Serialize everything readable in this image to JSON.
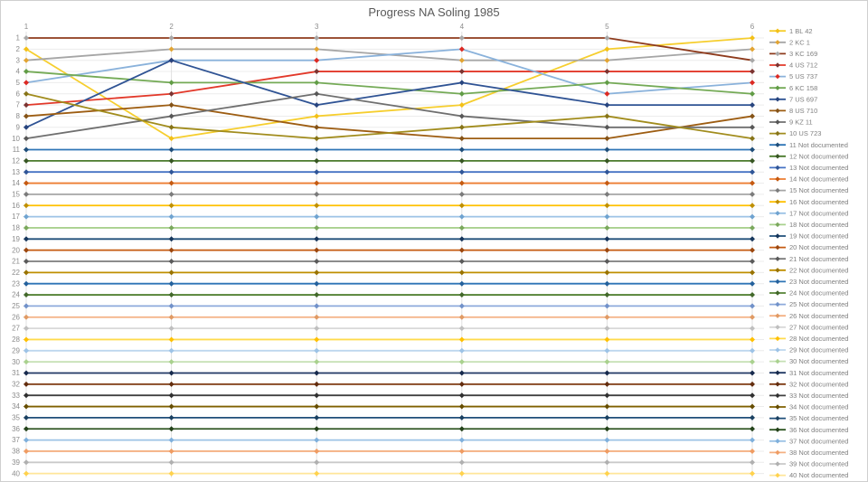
{
  "chart_data": {
    "type": "line",
    "title": "Progress NA Soling 1985",
    "x_labels": [
      "1",
      "2",
      "3",
      "4",
      "5",
      "6"
    ],
    "xlabel": "",
    "ylabel": "",
    "y_axis": {
      "min": 1,
      "max": 40,
      "step": 1,
      "inverted": true
    },
    "grid": "on",
    "legend_position": "right",
    "series": [
      {
        "name": "1 BL 42",
        "line": "#f6ce2e",
        "marker": "#f3c018",
        "values": [
          2,
          10,
          8,
          7,
          2,
          1
        ]
      },
      {
        "name": "2 KC 1",
        "line": "#a6a6a6",
        "marker": "#e2a432",
        "values": [
          3,
          2,
          2,
          3,
          3,
          2
        ]
      },
      {
        "name": "3 KC 169",
        "line": "#8e3b1d",
        "marker": "#a8a8a8",
        "values": [
          1,
          1,
          1,
          1,
          1,
          3
        ]
      },
      {
        "name": "4 US 712",
        "line": "#e2392a",
        "marker": "#7c3431",
        "values": [
          7,
          6,
          4,
          4,
          4,
          4
        ]
      },
      {
        "name": "5 US 737",
        "line": "#8ab2db",
        "marker": "#dc2a23",
        "values": [
          5,
          3,
          3,
          2,
          6,
          5
        ]
      },
      {
        "name": "6 KC 158",
        "line": "#74aa56",
        "marker": "#619c46",
        "values": [
          4,
          5,
          5,
          6,
          5,
          6
        ]
      },
      {
        "name": "7 US 697",
        "line": "#2f5394",
        "marker": "#27447e",
        "values": [
          9,
          3,
          7,
          5,
          7,
          7
        ]
      },
      {
        "name": "8 US 710",
        "line": "#9d5d12",
        "marker": "#855317",
        "values": [
          8,
          7,
          9,
          10,
          10,
          8
        ]
      },
      {
        "name": "9 KZ 11",
        "line": "#6f6f6f",
        "marker": "#575757",
        "values": [
          10,
          8,
          6,
          8,
          9,
          9
        ]
      },
      {
        "name": "10 US 723",
        "line": "#a18c1d",
        "marker": "#877418",
        "values": [
          6,
          9,
          10,
          9,
          8,
          10
        ]
      },
      {
        "name": "11 Not documented",
        "line": "#2e75b6",
        "marker": "#1f4e79",
        "values": [
          11,
          11,
          11,
          11,
          11,
          11
        ]
      },
      {
        "name": "12 Not documented",
        "line": "#4a7a2c",
        "marker": "#375623",
        "values": [
          12,
          12,
          12,
          12,
          12,
          12
        ]
      },
      {
        "name": "13 Not documented",
        "line": "#4472c4",
        "marker": "#2f5597",
        "values": [
          13,
          13,
          13,
          13,
          13,
          13
        ]
      },
      {
        "name": "14 Not documented",
        "line": "#ed7d31",
        "marker": "#c55a11",
        "values": [
          14,
          14,
          14,
          14,
          14,
          14
        ]
      },
      {
        "name": "15 Not documented",
        "line": "#a5a5a5",
        "marker": "#7b7b7b",
        "values": [
          15,
          15,
          15,
          15,
          15,
          15
        ]
      },
      {
        "name": "16 Not documented",
        "line": "#ffc000",
        "marker": "#bf8f00",
        "values": [
          16,
          16,
          16,
          16,
          16,
          16
        ]
      },
      {
        "name": "17 Not documented",
        "line": "#9dc3e6",
        "marker": "#6fa3d0",
        "values": [
          17,
          17,
          17,
          17,
          17,
          17
        ]
      },
      {
        "name": "18 Not documented",
        "line": "#a9d18e",
        "marker": "#7aa85c",
        "values": [
          18,
          18,
          18,
          18,
          18,
          18
        ]
      },
      {
        "name": "19 Not documented",
        "line": "#1f4e79",
        "marker": "#16365c",
        "values": [
          19,
          19,
          19,
          19,
          19,
          19
        ]
      },
      {
        "name": "20 Not documented",
        "line": "#c55a11",
        "marker": "#9c470e",
        "values": [
          20,
          20,
          20,
          20,
          20,
          20
        ]
      },
      {
        "name": "21 Not documented",
        "line": "#7b7b7b",
        "marker": "#5a5a5a",
        "values": [
          21,
          21,
          21,
          21,
          21,
          21
        ]
      },
      {
        "name": "22 Not documented",
        "line": "#bf8f00",
        "marker": "#997300",
        "values": [
          22,
          22,
          22,
          22,
          22,
          22
        ]
      },
      {
        "name": "23 Not documented",
        "line": "#2e75b6",
        "marker": "#24619c",
        "values": [
          23,
          23,
          23,
          23,
          23,
          23
        ]
      },
      {
        "name": "24 Not documented",
        "line": "#548235",
        "marker": "#42682a",
        "values": [
          24,
          24,
          24,
          24,
          24,
          24
        ]
      },
      {
        "name": "25 Not documented",
        "line": "#8eaadb",
        "marker": "#7191c9",
        "values": [
          25,
          25,
          25,
          25,
          25,
          25
        ]
      },
      {
        "name": "26 Not documented",
        "line": "#f4b183",
        "marker": "#e09a64",
        "values": [
          26,
          26,
          26,
          26,
          26,
          26
        ]
      },
      {
        "name": "27 Not documented",
        "line": "#d9d9d9",
        "marker": "#bfbfbf",
        "values": [
          27,
          27,
          27,
          27,
          27,
          27
        ]
      },
      {
        "name": "28 Not documented",
        "line": "#ffdb4d",
        "marker": "#ffc000",
        "values": [
          28,
          28,
          28,
          28,
          28,
          28
        ]
      },
      {
        "name": "29 Not documented",
        "line": "#bdd7ee",
        "marker": "#9dc3e6",
        "values": [
          29,
          29,
          29,
          29,
          29,
          29
        ]
      },
      {
        "name": "30 Not documented",
        "line": "#c5e0b4",
        "marker": "#a9d18e",
        "values": [
          30,
          30,
          30,
          30,
          30,
          30
        ]
      },
      {
        "name": "31 Not documented",
        "line": "#203864",
        "marker": "#172a4d",
        "values": [
          31,
          31,
          31,
          31,
          31,
          31
        ]
      },
      {
        "name": "32 Not documented",
        "line": "#7e3a12",
        "marker": "#632d0e",
        "values": [
          32,
          32,
          32,
          32,
          32,
          32
        ]
      },
      {
        "name": "33 Not documented",
        "line": "#404040",
        "marker": "#303030",
        "values": [
          33,
          33,
          33,
          33,
          33,
          33
        ]
      },
      {
        "name": "34 Not documented",
        "line": "#7f6000",
        "marker": "#664d00",
        "values": [
          34,
          34,
          34,
          34,
          34,
          34
        ]
      },
      {
        "name": "35 Not documented",
        "line": "#1f4e79",
        "marker": "#1a4061",
        "values": [
          35,
          35,
          35,
          35,
          35,
          35
        ]
      },
      {
        "name": "36 Not documented",
        "line": "#2f5522",
        "marker": "#24421a",
        "values": [
          36,
          36,
          36,
          36,
          36,
          36
        ]
      },
      {
        "name": "37 Not documented",
        "line": "#9dc3e6",
        "marker": "#7fb0dc",
        "values": [
          37,
          37,
          37,
          37,
          37,
          37
        ]
      },
      {
        "name": "38 Not documented",
        "line": "#f4b183",
        "marker": "#ef9c63",
        "values": [
          38,
          38,
          38,
          38,
          38,
          38
        ]
      },
      {
        "name": "39 Not documented",
        "line": "#c9c9c9",
        "marker": "#b0b0b0",
        "values": [
          39,
          39,
          39,
          39,
          39,
          39
        ]
      },
      {
        "name": "40 Not documented",
        "line": "#ffe699",
        "marker": "#ffd24d",
        "values": [
          40,
          40,
          40,
          40,
          40,
          40
        ]
      }
    ],
    "style": {
      "title_color": "#595959",
      "axis_label_color": "#8c8c8c",
      "legend_text_color": "#7f7f7f",
      "h_gridline_color": "#ececec",
      "v_gridline_color": "#e0e0e0",
      "background": "#ffffff"
    }
  }
}
